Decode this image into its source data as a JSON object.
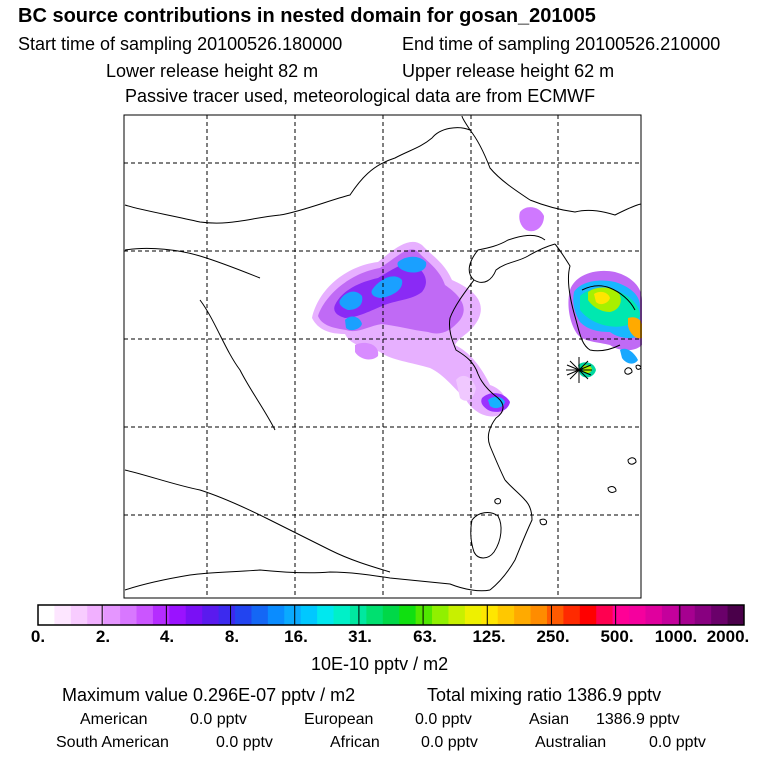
{
  "header": {
    "title": "BC  source contributions in nested domain for gosan_201005",
    "start_time": "Start time of sampling 20100526.180000",
    "end_time": "End time of sampling 20100526.210000",
    "lower_release": "Lower release height   82 m",
    "upper_release": "Upper release height   62 m",
    "tracer_note": "Passive tracer used, meteorological data are from ECMWF"
  },
  "colorbar": {
    "tick_labels": [
      "0.",
      "2.",
      "4.",
      "8.",
      "16.",
      "31.",
      "63.",
      "125.",
      "250.",
      "500.",
      "1000.",
      "2000."
    ],
    "unit": "10E-10 pptv / m2",
    "colors": [
      "#ffffff",
      "#fde6ff",
      "#f8ccff",
      "#f1b0ff",
      "#e596ff",
      "#d877ff",
      "#cb55ff",
      "#b52cff",
      "#9a12ff",
      "#7a10f5",
      "#5a1aee",
      "#3c2aee",
      "#2244f0",
      "#1467f5",
      "#0a8cff",
      "#0aaaff",
      "#00c8ff",
      "#00e8ef",
      "#00f0c8",
      "#00e8a0",
      "#00e070",
      "#00d848",
      "#10e010",
      "#50e800",
      "#90f000",
      "#c8f000",
      "#eef000",
      "#ffe600",
      "#ffc800",
      "#ffaa00",
      "#ff8c00",
      "#ff5a00",
      "#ff2a00",
      "#ff0000",
      "#ff0050",
      "#ff0096",
      "#f5009e",
      "#e0009e",
      "#c4009c",
      "#a60090",
      "#880080",
      "#6a006a",
      "#4a004a"
    ]
  },
  "summary": {
    "max_value": "Maximum value  0.296E-07 pptv / m2",
    "total_mixing": "Total mixing ratio     1386.9 pptv",
    "american_label": "American",
    "american_value": "0.0 pptv",
    "european_label": "European",
    "european_value": "0.0 pptv",
    "asian_label": "Asian",
    "asian_value": "1386.9 pptv",
    "south_american_label": "South American",
    "south_american_value": "0.0 pptv",
    "african_label": "African",
    "african_value": "0.0 pptv",
    "australian_label": "Australian",
    "australian_value": "0.0 pptv"
  },
  "map": {
    "receptor_marker": "gosan-receptor-star",
    "grid": "dashed",
    "frame_color": "#000000"
  }
}
